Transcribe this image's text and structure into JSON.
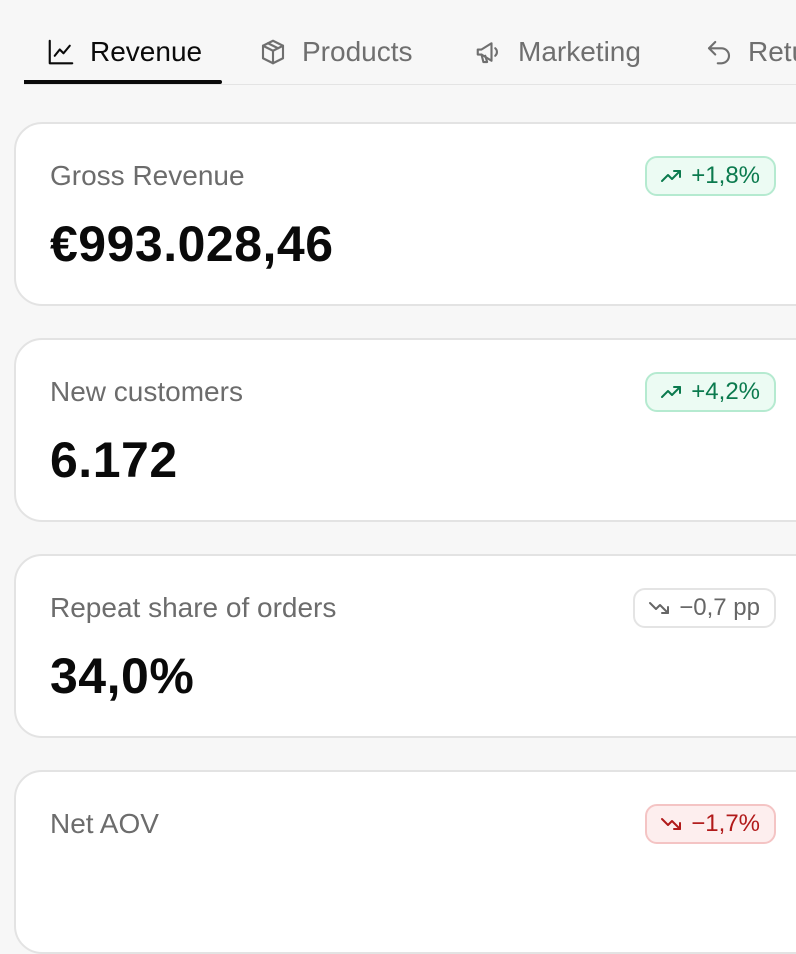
{
  "tabs": [
    {
      "label": "Revenue",
      "icon": "line-chart-icon",
      "active": true
    },
    {
      "label": "Products",
      "icon": "box-icon",
      "active": false
    },
    {
      "label": "Marketing",
      "icon": "megaphone-icon",
      "active": false
    },
    {
      "label": "Returns",
      "icon": "return-arrow-icon",
      "active": false
    }
  ],
  "cards": [
    {
      "label": "Gross Revenue",
      "value": "€993.028,46",
      "delta": "+1,8%",
      "trend": "up",
      "trend_color": "#0b7a4e"
    },
    {
      "label": "New customers",
      "value": "6.172",
      "delta": "+4,2%",
      "trend": "up",
      "trend_color": "#0b7a4e"
    },
    {
      "label": "Repeat share of orders",
      "value": "34,0%",
      "delta": "−0,7 pp",
      "trend": "neutral",
      "trend_color": "#666666"
    },
    {
      "label": "Net AOV",
      "value": "",
      "delta": "−1,7%",
      "trend": "down",
      "trend_color": "#b11a1a"
    }
  ]
}
